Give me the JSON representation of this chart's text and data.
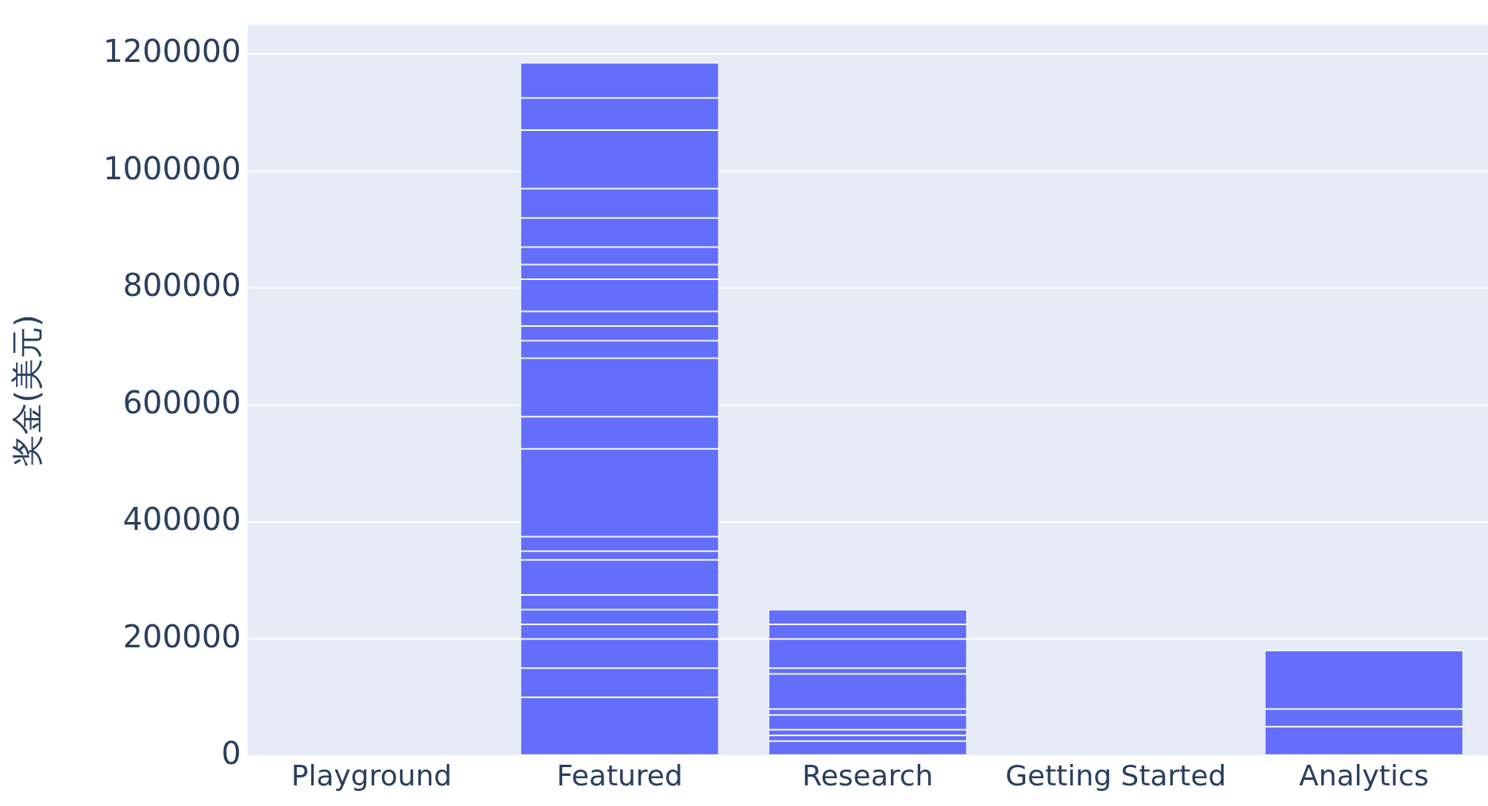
{
  "chart_data": {
    "type": "bar",
    "stacked": true,
    "categories": [
      "Playground",
      "Featured",
      "Research",
      "Getting Started",
      "Analytics"
    ],
    "ylabel": "奖金(美元)",
    "ylim": [
      0,
      1250000
    ],
    "yticks": [
      0,
      200000,
      400000,
      600000,
      800000,
      1000000,
      1200000
    ],
    "grid": "y",
    "series": [
      {
        "color": "#636efa",
        "values": [
          0,
          100000,
          25000,
          0,
          50000
        ]
      },
      {
        "color": "#636efa",
        "values": [
          null,
          50000,
          10000,
          null,
          30000
        ]
      },
      {
        "color": "#636efa",
        "values": [
          null,
          50000,
          10000,
          null,
          100000
        ]
      },
      {
        "color": "#636efa",
        "values": [
          null,
          25000,
          25000,
          null,
          null
        ]
      },
      {
        "color": "#636efa",
        "values": [
          null,
          25000,
          10000,
          null,
          null
        ]
      },
      {
        "color": "#636efa",
        "values": [
          null,
          25000,
          60000,
          null,
          null
        ]
      },
      {
        "color": "#636efa",
        "values": [
          null,
          60000,
          10000,
          null,
          null
        ]
      },
      {
        "color": "#636efa",
        "values": [
          null,
          15000,
          null,
          null,
          null
        ]
      },
      {
        "color": "#636efa",
        "values": [
          null,
          25000,
          50000,
          null,
          null
        ]
      },
      {
        "color": "#636efa",
        "values": [
          null,
          150000,
          25000,
          null,
          null
        ]
      },
      {
        "color": "#636efa",
        "values": [
          null,
          55000,
          25000,
          null,
          null
        ]
      },
      {
        "color": "#636efa",
        "values": [
          null,
          100000,
          null,
          null,
          null
        ]
      },
      {
        "color": "#636efa",
        "values": [
          null,
          30000,
          null,
          null,
          null
        ]
      },
      {
        "color": "#636efa",
        "values": [
          null,
          25000,
          null,
          null,
          null
        ]
      },
      {
        "color": "#636efa",
        "values": [
          null,
          25000,
          null,
          null,
          null
        ]
      },
      {
        "color": "#636efa",
        "values": [
          null,
          55000,
          null,
          null,
          null
        ]
      },
      {
        "color": "#636efa",
        "values": [
          null,
          25000,
          null,
          null,
          null
        ]
      },
      {
        "color": "#636efa",
        "values": [
          null,
          30000,
          null,
          null,
          null
        ]
      },
      {
        "color": "#636efa",
        "values": [
          null,
          50000,
          null,
          null,
          null
        ]
      },
      {
        "color": "#636efa",
        "values": [
          null,
          50000,
          null,
          null,
          null
        ]
      },
      {
        "color": "#636efa",
        "values": [
          null,
          100000,
          null,
          null,
          null
        ]
      },
      {
        "color": "#636efa",
        "values": [
          null,
          55000,
          null,
          null,
          null
        ]
      },
      {
        "color": "#636efa",
        "values": [
          null,
          60000,
          null,
          null,
          null
        ]
      }
    ]
  }
}
